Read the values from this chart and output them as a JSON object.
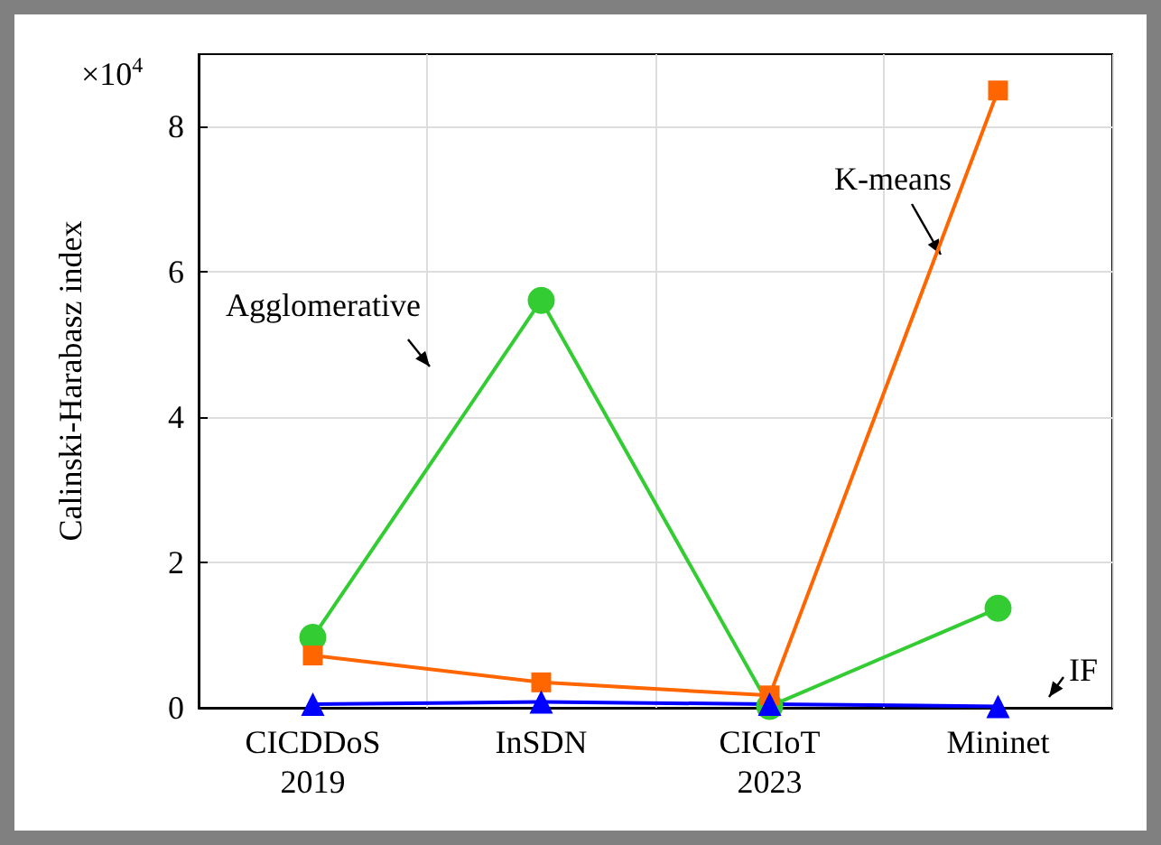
{
  "chart_data": {
    "type": "line",
    "ylabel": "Calinski-Harabasz index",
    "categories": [
      "CICDDoS\n2019",
      "InSDN",
      "CICIoT\n2023",
      "Mininet"
    ],
    "series": [
      {
        "name": "Agglomerative",
        "color": "#33cc33",
        "marker": "circle",
        "values": [
          0.97,
          5.61,
          0.02,
          1.37
        ]
      },
      {
        "name": "K-means",
        "color": "#ff6600",
        "marker": "square",
        "values": [
          0.72,
          0.35,
          0.17,
          8.5
        ]
      },
      {
        "name": "IF",
        "color": "#0000ff",
        "marker": "triangle",
        "values": [
          0.05,
          0.08,
          0.05,
          0.02
        ]
      }
    ],
    "annotations": [
      "×10$^{4}$"
    ],
    "ylim": [
      0,
      9
    ],
    "yticks": [
      0,
      2,
      4,
      6,
      8
    ],
    "grid": true,
    "legend": false,
    "line_style": "solid"
  }
}
